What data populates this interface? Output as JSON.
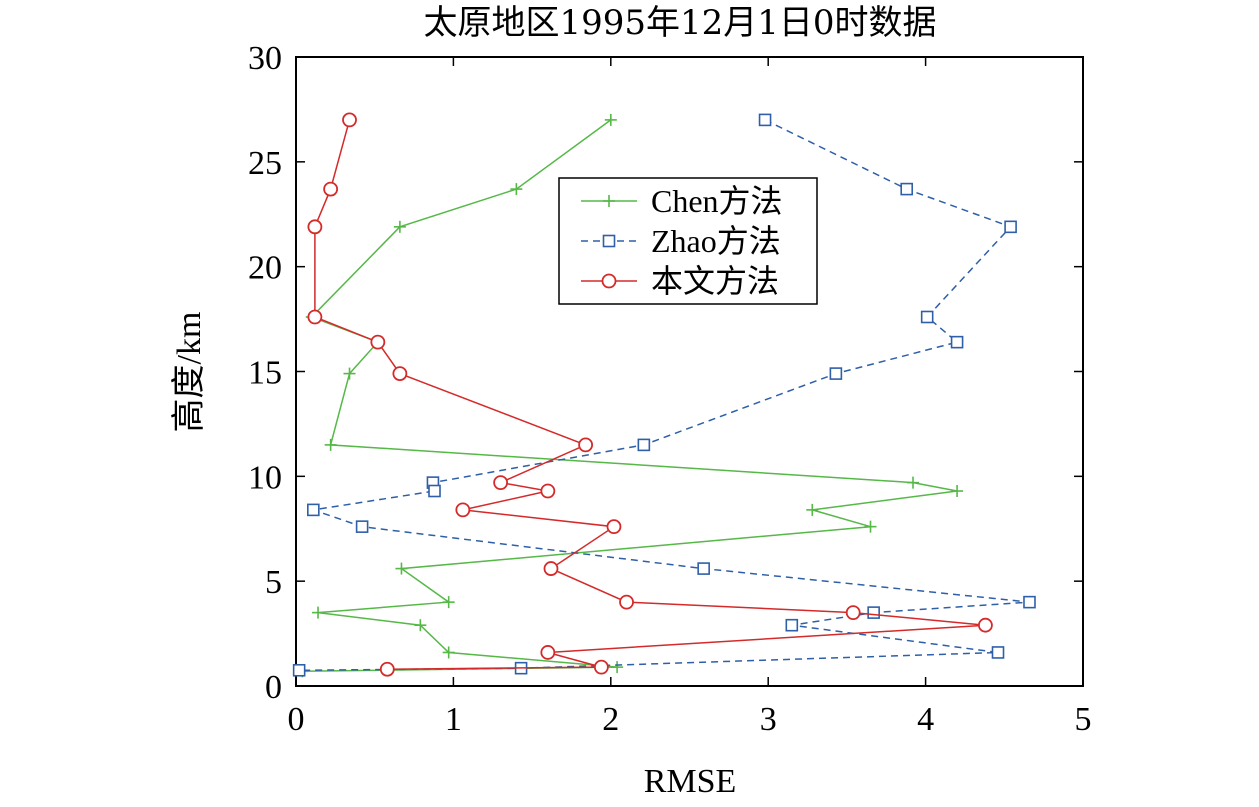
{
  "chart_data": {
    "type": "line",
    "title": "太原地区1995年12月1日0时数据",
    "xlabel": "RMSE",
    "ylabel": "高度/km",
    "xlim": [
      0,
      5
    ],
    "ylim": [
      0,
      30
    ],
    "xticks": [
      0,
      1,
      2,
      3,
      4,
      5
    ],
    "yticks": [
      0,
      5,
      10,
      15,
      20,
      25,
      30
    ],
    "grid": false,
    "legend_position": "upper-center",
    "series": [
      {
        "name": "Chen方法",
        "color": "#55b847",
        "line_style": "solid",
        "marker": "plus",
        "points": [
          [
            2.0,
            27.0
          ],
          [
            1.4,
            23.7
          ],
          [
            0.66,
            21.9
          ],
          [
            0.1,
            17.6
          ],
          [
            0.52,
            16.4
          ],
          [
            0.34,
            14.9
          ],
          [
            0.22,
            11.5
          ],
          [
            3.92,
            9.7
          ],
          [
            4.2,
            9.3
          ],
          [
            3.28,
            8.4
          ],
          [
            3.65,
            7.6
          ],
          [
            0.67,
            5.6
          ],
          [
            0.97,
            4.0
          ],
          [
            0.14,
            3.5
          ],
          [
            0.79,
            2.9
          ],
          [
            0.97,
            1.6
          ],
          [
            2.04,
            0.9
          ],
          [
            0.04,
            0.7
          ]
        ]
      },
      {
        "name": "Zhao方法",
        "color": "#2e5fa8",
        "line_style": "dashed",
        "marker": "square",
        "points": [
          [
            2.98,
            27.0
          ],
          [
            3.88,
            23.7
          ],
          [
            4.54,
            21.9
          ],
          [
            4.01,
            17.6
          ],
          [
            4.2,
            16.4
          ],
          [
            3.43,
            14.9
          ],
          [
            2.21,
            11.5
          ],
          [
            0.87,
            9.7
          ],
          [
            0.88,
            9.3
          ],
          [
            0.11,
            8.4
          ],
          [
            0.42,
            7.6
          ],
          [
            2.59,
            5.6
          ],
          [
            4.66,
            4.0
          ],
          [
            3.67,
            3.5
          ],
          [
            3.15,
            2.9
          ],
          [
            4.46,
            1.6
          ],
          [
            1.43,
            0.85
          ],
          [
            0.02,
            0.75
          ]
        ]
      },
      {
        "name": "本文方法",
        "color": "#d42a2a",
        "line_style": "solid",
        "marker": "circle",
        "points": [
          [
            0.34,
            27.0
          ],
          [
            0.22,
            23.7
          ],
          [
            0.12,
            21.9
          ],
          [
            0.12,
            17.6
          ],
          [
            0.52,
            16.4
          ],
          [
            0.66,
            14.9
          ],
          [
            1.84,
            11.5
          ],
          [
            1.3,
            9.7
          ],
          [
            1.6,
            9.3
          ],
          [
            1.06,
            8.4
          ],
          [
            2.02,
            7.6
          ],
          [
            1.62,
            5.6
          ],
          [
            2.1,
            4.0
          ],
          [
            3.54,
            3.5
          ],
          [
            4.38,
            2.9
          ],
          [
            1.6,
            1.6
          ],
          [
            1.94,
            0.9
          ],
          [
            0.58,
            0.8
          ]
        ]
      }
    ]
  }
}
